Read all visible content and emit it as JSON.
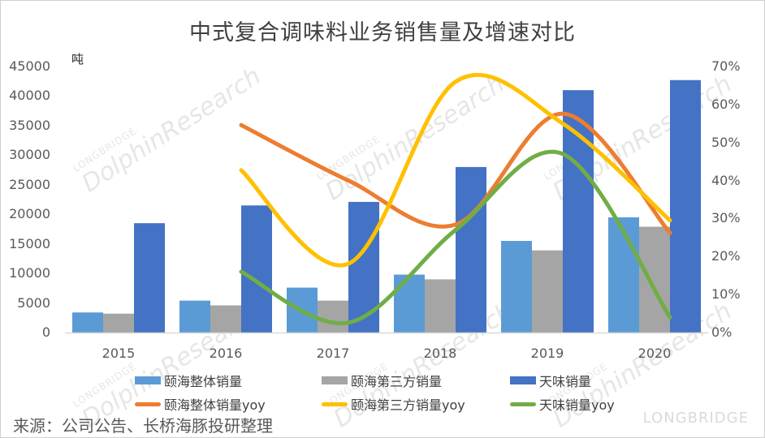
{
  "chart_data": {
    "type": "bar+line",
    "title": "中式复合调味料业务销售量及增速对比",
    "ylabel_left": "吨",
    "ylabel_right": "",
    "categories": [
      "2015",
      "2016",
      "2017",
      "2018",
      "2019",
      "2020"
    ],
    "ylim_left": [
      0,
      45000
    ],
    "ylim_right": [
      0,
      70
    ],
    "left_ticks": [
      "45000",
      "40000",
      "35000",
      "30000",
      "25000",
      "20000",
      "15000",
      "10000",
      "5000",
      "0"
    ],
    "right_ticks": [
      "70%",
      "60%",
      "50%",
      "40%",
      "30%",
      "20%",
      "10%",
      "0%"
    ],
    "bar_series": [
      {
        "name": "颐海整体销量",
        "color": "#5B9BD5",
        "values": [
          3400,
          5400,
          7600,
          9800,
          15500,
          19500
        ]
      },
      {
        "name": "颐海第三方销量",
        "color": "#A5A5A5",
        "values": [
          3200,
          4600,
          5400,
          9000,
          13900,
          17900
        ]
      },
      {
        "name": "天味销量",
        "color": "#4472C4",
        "values": [
          18500,
          21500,
          22100,
          28000,
          41000,
          42700
        ]
      }
    ],
    "line_series": [
      {
        "name": "颐海整体销量yoy",
        "color": "#ED7D31",
        "values": [
          null,
          54.6,
          40.0,
          28.4,
          57.6,
          26.2
        ]
      },
      {
        "name": "颐海第三方销量yoy",
        "color": "#FFC000",
        "values": [
          null,
          42.7,
          18.1,
          66.0,
          55.0,
          29.5
        ]
      },
      {
        "name": "天味销量yoy",
        "color": "#70AD47",
        "values": [
          null,
          16.0,
          2.6,
          27.0,
          47.0,
          4.0
        ]
      }
    ],
    "legend_position": "bottom",
    "grid": false
  },
  "legend": {
    "items": [
      {
        "label": "颐海整体销量"
      },
      {
        "label": "颐海第三方销量"
      },
      {
        "label": "天味销量"
      },
      {
        "label": "颐海整体销量yoy"
      },
      {
        "label": "颐海第三方销量yoy"
      },
      {
        "label": "天味销量yoy"
      }
    ]
  },
  "source": "来源：公司公告、长桥海豚投研整理",
  "watermark": {
    "main": "DolphinResearch",
    "sub": "LONGBRIDGE",
    "brand": "LONGBRIDGE"
  }
}
